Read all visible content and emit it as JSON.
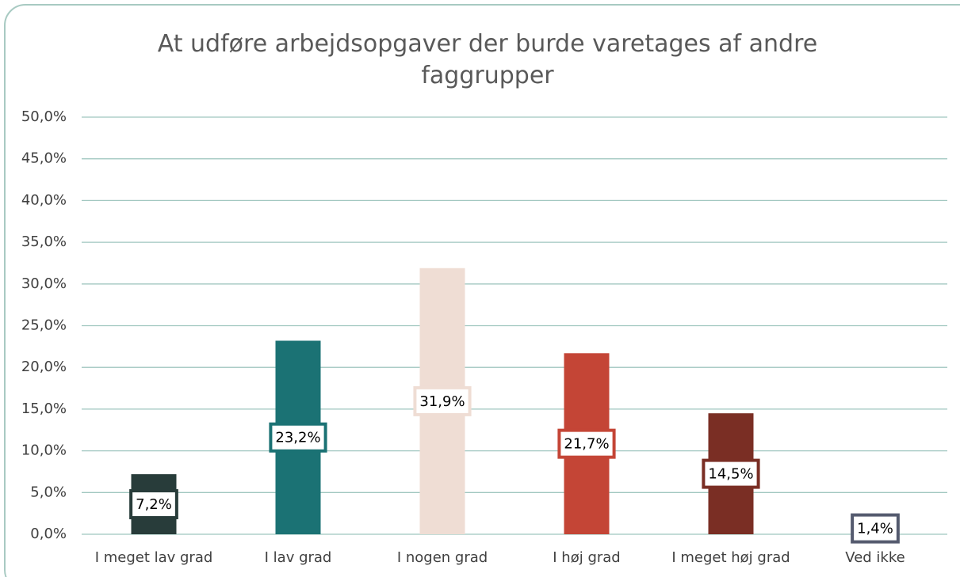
{
  "chart_data": {
    "type": "bar",
    "title": "At udføre arbejdsopgaver der burde varetages af andre faggrupper",
    "categories": [
      "I meget lav grad",
      "I lav grad",
      "I nogen grad",
      "I høj grad",
      "I meget høj grad",
      "Ved ikke"
    ],
    "values": [
      7.2,
      23.2,
      31.9,
      21.7,
      14.5,
      1.4
    ],
    "value_labels": [
      "7,2%",
      "23,2%",
      "31,9%",
      "21,7%",
      "14,5%",
      "1,4%"
    ],
    "colors": [
      "#283c3a",
      "#1b7274",
      "#efddd4",
      "#c44536",
      "#7a2e24",
      "#545a6e"
    ],
    "ylim": [
      0,
      50
    ],
    "yticks": [
      {
        "value": 0,
        "label": "0,0%"
      },
      {
        "value": 5,
        "label": "5,0%"
      },
      {
        "value": 10,
        "label": "10,0%"
      },
      {
        "value": 15,
        "label": "15,0%"
      },
      {
        "value": 20,
        "label": "20,0%"
      },
      {
        "value": 25,
        "label": "25,0%"
      },
      {
        "value": 30,
        "label": "30,0%"
      },
      {
        "value": 35,
        "label": "35,0%"
      },
      {
        "value": 40,
        "label": "40,0%"
      },
      {
        "value": 45,
        "label": "45,0%"
      },
      {
        "value": 50,
        "label": "50,0%"
      }
    ],
    "grid": true
  }
}
